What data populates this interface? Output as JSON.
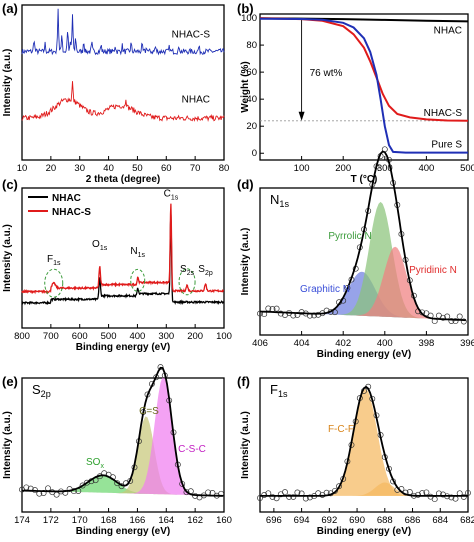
{
  "chart_data": [
    {
      "panel": "(a)",
      "type": "line",
      "xlabel": "2 theta (degree)",
      "ylabel": "Intensity (a.u.)",
      "xlim": [
        10,
        80
      ],
      "xticks": [
        10,
        20,
        30,
        40,
        50,
        60,
        70,
        80
      ],
      "yticks_shown": false,
      "series": [
        {
          "name": "NHAC-S",
          "color": "#1f2fb5",
          "baseline": 0.7,
          "noise": 0.035,
          "peaks": [
            [
              14.2,
              0.08
            ],
            [
              18.0,
              0.05
            ],
            [
              22.5,
              0.28
            ],
            [
              23.8,
              0.12
            ],
            [
              25.8,
              0.14
            ],
            [
              26.8,
              0.06
            ],
            [
              27.5,
              0.24
            ],
            [
              28.6,
              0.09
            ],
            [
              31.4,
              0.07
            ],
            [
              34.2,
              0.05
            ],
            [
              37.4,
              0.04
            ],
            [
              42.3,
              0.04
            ],
            [
              44.7,
              0.04
            ],
            [
              47.8,
              0.05
            ],
            [
              51.6,
              0.04
            ],
            [
              53.2,
              0.03
            ],
            [
              56.2,
              0.03
            ],
            [
              61.1,
              0.03
            ],
            [
              64.5,
              0.03
            ],
            [
              71.3,
              0.03
            ]
          ]
        },
        {
          "name": "NHAC",
          "color": "#e01b1b",
          "baseline": 0.27,
          "noise": 0.035,
          "peaks": [
            [
              27.5,
              0.12
            ],
            [
              46.0,
              0.06
            ]
          ],
          "humps": [
            [
              26.0,
              4.5,
              0.12
            ],
            [
              44.0,
              5.0,
              0.08
            ]
          ]
        }
      ]
    },
    {
      "panel": "(b)",
      "type": "line",
      "xlabel": "T (°C)",
      "ylabel": "Weight (%)",
      "xlim": [
        0,
        500
      ],
      "ylim": [
        0,
        100
      ],
      "xticks": [
        100,
        200,
        300,
        400,
        500
      ],
      "yticks": [
        0,
        20,
        40,
        60,
        80,
        100
      ],
      "annotation": "76 wt%",
      "series": [
        {
          "name": "NHAC",
          "color": "#000000",
          "x": [
            0,
            100,
            200,
            300,
            400,
            500
          ],
          "y": [
            99.8,
            99.6,
            99.2,
            98.6,
            98.0,
            97.5
          ]
        },
        {
          "name": "NHAC-S",
          "color": "#e01b1b",
          "x": [
            0,
            100,
            150,
            200,
            225,
            250,
            265,
            280,
            295,
            310,
            330,
            360,
            400,
            450,
            500
          ],
          "y": [
            99.8,
            99.2,
            98.0,
            94.0,
            88.0,
            78.0,
            68.0,
            56.0,
            44.0,
            35.0,
            29.0,
            26.5,
            25.0,
            24.2,
            24.0
          ]
        },
        {
          "name": "Pure S",
          "color": "#1f2fb5",
          "x": [
            0,
            100,
            150,
            200,
            225,
            250,
            265,
            280,
            290,
            300,
            310,
            320,
            350,
            400,
            500
          ],
          "y": [
            99.5,
            99.3,
            98.8,
            96.5,
            93.0,
            85.0,
            75.0,
            58.0,
            40.0,
            20.0,
            6.0,
            1.0,
            0.5,
            0.5,
            0.5
          ]
        }
      ]
    },
    {
      "panel": "(c)",
      "type": "line",
      "xlabel": "Binding energy (eV)",
      "ylabel": "Intensity (a.u.)",
      "xlim": [
        800,
        100
      ],
      "xticks": [
        800,
        700,
        600,
        500,
        400,
        300,
        200,
        100
      ],
      "legend": [
        "NHAC",
        "NHAC-S"
      ],
      "labels": [
        {
          "base": "F",
          "sub": "1s",
          "x": 690
        },
        {
          "base": "O",
          "sub": "1s",
          "x": 531
        },
        {
          "base": "N",
          "sub": "1s",
          "x": 399
        },
        {
          "base": "C",
          "sub": "1s",
          "x": 284
        },
        {
          "base": "S",
          "sub": "2s",
          "x": 228
        },
        {
          "base": "S",
          "sub": "2p",
          "x": 164
        }
      ],
      "series": [
        {
          "name": "NHAC",
          "color": "#000000"
        },
        {
          "name": "NHAC-S",
          "color": "#e01b1b"
        }
      ]
    },
    {
      "panel": "(d)",
      "type": "line",
      "title": {
        "base": "N",
        "sub": "1s"
      },
      "xlabel": "Binding energy (eV)",
      "ylabel": "Intensity (a.u.)",
      "xlim": [
        406,
        396
      ],
      "xticks": [
        406,
        404,
        402,
        400,
        398,
        396
      ],
      "components": [
        {
          "name": "Graphitic N",
          "center": 401.1,
          "height": 0.3,
          "sigma": 0.65,
          "color": "#6f7fe0"
        },
        {
          "name": "Pyrrolic N",
          "center": 400.2,
          "height": 0.78,
          "sigma": 0.55,
          "color": "#8ac47a"
        },
        {
          "name": "Pyridinic N",
          "center": 399.5,
          "height": 0.48,
          "sigma": 0.55,
          "color": "#f08080"
        }
      ]
    },
    {
      "panel": "(e)",
      "type": "line",
      "title": {
        "base": "S",
        "sub": "2p"
      },
      "xlabel": "Binding energy (eV)",
      "ylabel": "Intensity (a.u.)",
      "xlim": [
        174,
        160
      ],
      "xticks": [
        174,
        172,
        170,
        168,
        166,
        164,
        162,
        160
      ],
      "components": [
        {
          "name": "SOx",
          "label": {
            "base": "SO",
            "sub": "x"
          },
          "center": 168.4,
          "height": 0.13,
          "sigma": 1.0,
          "color": "#6ed870"
        },
        {
          "name": "C=S",
          "center": 165.4,
          "height": 0.58,
          "sigma": 0.55,
          "color": "#c8c87a"
        },
        {
          "name": "C-S-C",
          "center": 164.2,
          "height": 0.88,
          "sigma": 0.6,
          "color": "#f07ef0"
        }
      ]
    },
    {
      "panel": "(f)",
      "type": "line",
      "title": {
        "base": "F",
        "sub": "1s"
      },
      "xlabel": "Binding energy (eV)",
      "ylabel": "Intensity (a.u.)",
      "xlim": [
        697,
        682
      ],
      "xticks": [
        696,
        694,
        692,
        690,
        688,
        686,
        684,
        682
      ],
      "tick_labels": [
        "696",
        "694",
        "692",
        "690",
        "688",
        "686",
        "684",
        "682"
      ],
      "components": [
        {
          "name": "F-C-F",
          "center": 689.4,
          "height": 0.8,
          "sigma": 0.85,
          "color": "#f5b860"
        },
        {
          "name": "",
          "center": 688.0,
          "height": 0.1,
          "sigma": 0.7,
          "color": "#f5b860"
        }
      ]
    }
  ]
}
